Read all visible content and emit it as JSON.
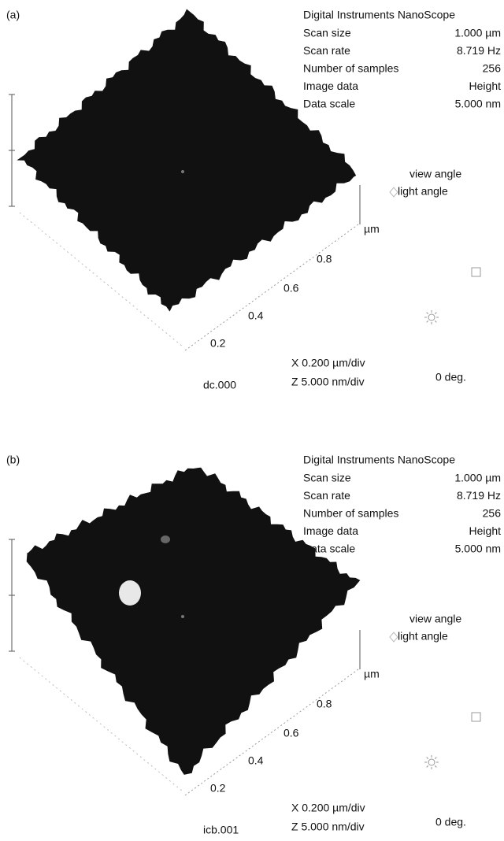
{
  "panels": [
    {
      "label": "(a)",
      "info": {
        "title": "Digital Instruments NanoScope",
        "rows": [
          [
            "Scan size",
            "1.000 µm"
          ],
          [
            "Scan rate",
            "8.719 Hz"
          ],
          [
            "Number of samples",
            "256"
          ],
          [
            "Image data",
            "Height"
          ],
          [
            "Data scale",
            "5.000 nm"
          ]
        ]
      },
      "legend": [
        "view angle",
        "light angle"
      ],
      "axis_unit": "µm",
      "axis_ticks": [
        "0.8",
        "0.6",
        "0.4",
        "0.2"
      ],
      "file": "dc.000",
      "scale": [
        "X 0.200 µm/div",
        "Z 5.000 nm/div"
      ],
      "rotation": "0 deg."
    },
    {
      "label": "(b)",
      "info": {
        "title": "Digital Instruments NanoScope",
        "rows": [
          [
            "Scan size",
            "1.000 µm"
          ],
          [
            "Scan rate",
            "8.719 Hz"
          ],
          [
            "Number of samples",
            "256"
          ],
          [
            "Image data",
            "Height"
          ],
          [
            "Data scale",
            "5.000 nm"
          ]
        ]
      },
      "legend": [
        "view angle",
        "light angle"
      ],
      "axis_unit": "µm",
      "axis_ticks": [
        "0.8",
        "0.6",
        "0.4",
        "0.2"
      ],
      "file": "icb.001",
      "scale": [
        "X 0.200 µm/div",
        "Z 5.000 nm/div"
      ],
      "rotation": "0 deg."
    }
  ]
}
